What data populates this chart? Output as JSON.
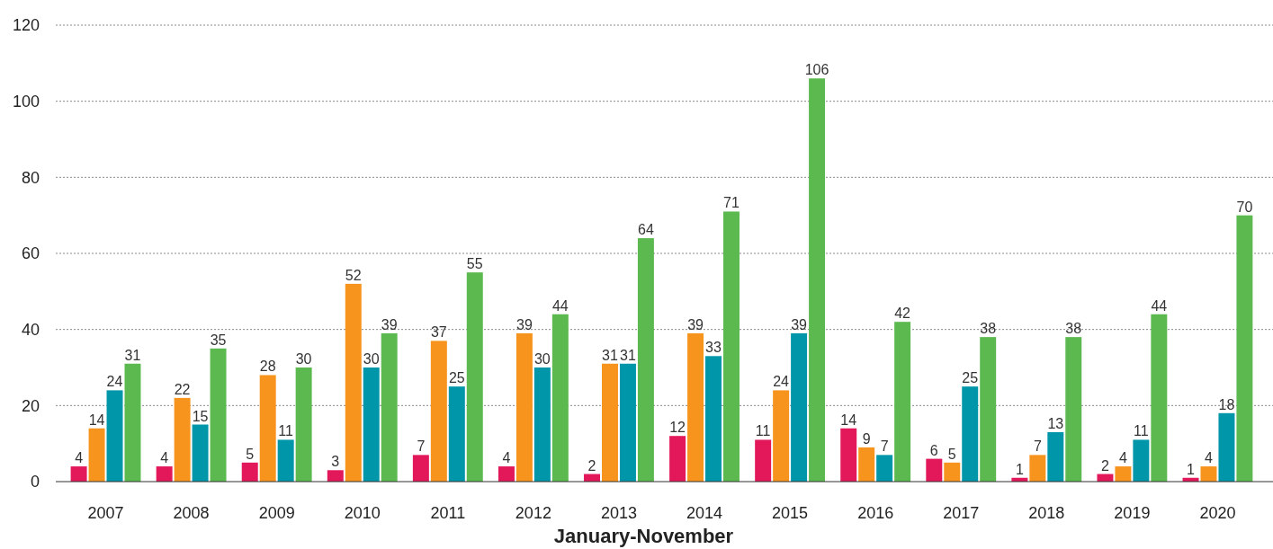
{
  "chart_data": {
    "type": "bar",
    "xlabel": "January-November",
    "categories": [
      "2007",
      "2008",
      "2009",
      "2010",
      "2011",
      "2012",
      "2013",
      "2014",
      "2015",
      "2016",
      "2017",
      "2018",
      "2019",
      "2020"
    ],
    "series": [
      {
        "color": "#e2185b",
        "values": [
          4,
          4,
          5,
          3,
          7,
          4,
          2,
          12,
          11,
          14,
          6,
          1,
          2,
          1
        ]
      },
      {
        "color": "#f7941d",
        "values": [
          14,
          22,
          28,
          52,
          37,
          39,
          31,
          39,
          24,
          9,
          5,
          7,
          4,
          4
        ]
      },
      {
        "color": "#0096a9",
        "values": [
          24,
          15,
          11,
          30,
          25,
          30,
          31,
          33,
          39,
          7,
          25,
          13,
          11,
          18
        ]
      },
      {
        "color": "#5cb950",
        "values": [
          31,
          35,
          30,
          39,
          55,
          44,
          64,
          71,
          106,
          42,
          38,
          38,
          44,
          70
        ]
      }
    ],
    "ylim": [
      0,
      120
    ],
    "yticks": [
      0,
      20,
      40,
      60,
      80,
      100,
      120
    ],
    "grid": "y",
    "data_labels": true
  }
}
